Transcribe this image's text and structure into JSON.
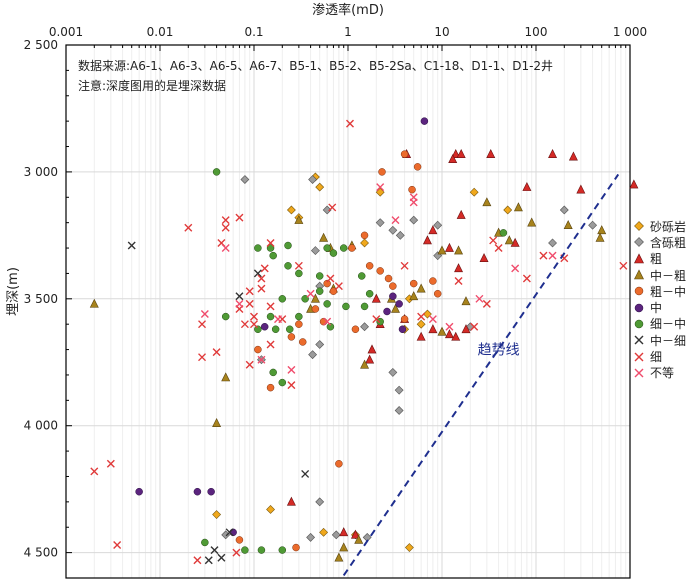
{
  "notes": {
    "line1": "数据来源:A6-1、A6-3、A6-5、A6-7、B5-1、B5-2、B5-2Sa、C1-18、D1-1、D1-2井",
    "line2": "注意:深度图用的是埋深数据"
  },
  "chart_data": {
    "type": "scatter",
    "xlabel": "渗透率(mD)",
    "ylabel": "埋深(m)",
    "xscale": "log",
    "xlim": [
      0.001,
      1000
    ],
    "ylim": [
      4600,
      2500
    ],
    "x_ticks": [
      0.001,
      0.01,
      0.1,
      1,
      10,
      100,
      1000
    ],
    "x_tick_labels": [
      "0.001",
      "0.01",
      "0.1",
      "1",
      "10",
      "100",
      "1 000"
    ],
    "y_ticks": [
      2500,
      3000,
      3500,
      4000,
      4500
    ],
    "y_tick_labels": [
      "2 500",
      "3 000",
      "3 500",
      "4 000",
      "4 500"
    ],
    "grid": true,
    "legend_position": "right",
    "series": [
      {
        "name": "砂砾岩",
        "marker": "diamond",
        "color": "#f0a81c",
        "stroke": "#7a5a10",
        "points": [
          [
            0.25,
            3150
          ],
          [
            0.45,
            3020
          ],
          [
            0.5,
            3060
          ],
          [
            0.3,
            3180
          ],
          [
            1.5,
            3280
          ],
          [
            2.2,
            3080
          ],
          [
            4.5,
            3500
          ],
          [
            6,
            3600
          ],
          [
            7,
            3560
          ],
          [
            22,
            3080
          ],
          [
            50,
            3150
          ],
          [
            4,
            3620
          ],
          [
            0.15,
            4330
          ],
          [
            0.55,
            4420
          ],
          [
            1.2,
            4430
          ],
          [
            4.5,
            4480
          ],
          [
            0.04,
            4350
          ]
        ]
      },
      {
        "name": "含砾粗",
        "marker": "diamond",
        "color": "#9b9b9b",
        "stroke": "#555555",
        "points": [
          [
            0.08,
            3030
          ],
          [
            0.42,
            3030
          ],
          [
            0.6,
            3150
          ],
          [
            0.45,
            3310
          ],
          [
            0.5,
            3450
          ],
          [
            2.2,
            3200
          ],
          [
            3,
            3230
          ],
          [
            3.6,
            3250
          ],
          [
            5,
            3190
          ],
          [
            9,
            3210
          ],
          [
            9,
            3330
          ],
          [
            20,
            3610
          ],
          [
            200,
            3150
          ],
          [
            150,
            3280
          ],
          [
            400,
            3210
          ],
          [
            0.12,
            3740
          ],
          [
            0.42,
            3720
          ],
          [
            0.5,
            3680
          ],
          [
            3,
            3790
          ],
          [
            3.5,
            3860
          ],
          [
            3.5,
            3940
          ],
          [
            1.5,
            3610
          ],
          [
            0.5,
            4300
          ],
          [
            0.4,
            4440
          ],
          [
            0.75,
            4430
          ],
          [
            1.6,
            4440
          ],
          [
            0.05,
            4430
          ]
        ]
      },
      {
        "name": "粗",
        "marker": "triangle",
        "color": "#d42a26",
        "stroke": "#6a1212",
        "points": [
          [
            4.2,
            2930
          ],
          [
            14,
            2930
          ],
          [
            16,
            2930
          ],
          [
            33,
            2930
          ],
          [
            13,
            2950
          ],
          [
            150,
            2930
          ],
          [
            250,
            2940
          ],
          [
            80,
            3060
          ],
          [
            300,
            3070
          ],
          [
            1100,
            3050
          ],
          [
            12,
            3300
          ],
          [
            15,
            3380
          ],
          [
            28,
            3340
          ],
          [
            16,
            3170
          ],
          [
            8,
            3230
          ],
          [
            7,
            3270
          ],
          [
            60,
            3280
          ],
          [
            2,
            3500
          ],
          [
            2.2,
            3600
          ],
          [
            4,
            3580
          ],
          [
            8,
            3620
          ],
          [
            12,
            3640
          ],
          [
            18,
            3620
          ],
          [
            6,
            3650
          ],
          [
            1.7,
            3740
          ],
          [
            1.8,
            3700
          ],
          [
            14,
            3650
          ],
          [
            0.25,
            4300
          ],
          [
            0.9,
            4420
          ],
          [
            1.2,
            4430
          ]
        ]
      },
      {
        "name": "中－粗",
        "marker": "triangle",
        "color": "#a7831d",
        "stroke": "#5a4510",
        "points": [
          [
            0.002,
            3520
          ],
          [
            0.3,
            3190
          ],
          [
            0.55,
            3260
          ],
          [
            0.65,
            3300
          ],
          [
            1.1,
            3290
          ],
          [
            0.7,
            3460
          ],
          [
            0.45,
            3500
          ],
          [
            0.4,
            3540
          ],
          [
            2.9,
            3500
          ],
          [
            3.2,
            3540
          ],
          [
            5,
            3490
          ],
          [
            10,
            3310
          ],
          [
            15,
            3310
          ],
          [
            30,
            3120
          ],
          [
            40,
            3240
          ],
          [
            52,
            3270
          ],
          [
            65,
            3140
          ],
          [
            90,
            3200
          ],
          [
            220,
            3210
          ],
          [
            500,
            3230
          ],
          [
            480,
            3260
          ],
          [
            18,
            3510
          ],
          [
            6,
            3460
          ],
          [
            10,
            3630
          ],
          [
            1.5,
            3760
          ],
          [
            0.05,
            3810
          ],
          [
            0.04,
            3990
          ],
          [
            0.9,
            4480
          ],
          [
            0.8,
            4520
          ],
          [
            1.3,
            4450
          ]
        ]
      },
      {
        "name": "粗－中",
        "marker": "circle",
        "color": "#eb6b2c",
        "stroke": "#7a3010",
        "points": [
          [
            2.3,
            3000
          ],
          [
            4,
            2930
          ],
          [
            5.5,
            2980
          ],
          [
            4.8,
            3070
          ],
          [
            1.5,
            3250
          ],
          [
            1.1,
            3300
          ],
          [
            1.7,
            3370
          ],
          [
            2.2,
            3390
          ],
          [
            2.7,
            3420
          ],
          [
            3,
            3450
          ],
          [
            0.6,
            3440
          ],
          [
            0.7,
            3470
          ],
          [
            0.45,
            3540
          ],
          [
            0.55,
            3590
          ],
          [
            0.3,
            3600
          ],
          [
            0.25,
            3650
          ],
          [
            0.33,
            3670
          ],
          [
            8,
            3430
          ],
          [
            9,
            3480
          ],
          [
            4,
            3580
          ],
          [
            1.2,
            3620
          ],
          [
            5,
            3440
          ],
          [
            0.15,
            3850
          ],
          [
            0.8,
            4150
          ],
          [
            0.28,
            4480
          ],
          [
            0.07,
            4450
          ],
          [
            0.11,
            3700
          ]
        ]
      },
      {
        "name": "中",
        "marker": "circle",
        "color": "#5b247e",
        "stroke": "#2a0f40",
        "points": [
          [
            6.5,
            2800
          ],
          [
            3,
            3490
          ],
          [
            3.5,
            3520
          ],
          [
            2.6,
            3550
          ],
          [
            3.8,
            3620
          ],
          [
            0.13,
            3610
          ],
          [
            0.006,
            4260
          ],
          [
            0.025,
            4260
          ],
          [
            0.035,
            4260
          ],
          [
            0.06,
            4420
          ]
        ]
      },
      {
        "name": "细－中",
        "marker": "circle",
        "color": "#4f9a35",
        "stroke": "#234a15",
        "points": [
          [
            0.04,
            3000
          ],
          [
            0.11,
            3300
          ],
          [
            0.15,
            3300
          ],
          [
            0.16,
            3330
          ],
          [
            0.23,
            3290
          ],
          [
            0.23,
            3370
          ],
          [
            0.3,
            3400
          ],
          [
            0.6,
            3300
          ],
          [
            0.7,
            3320
          ],
          [
            0.9,
            3300
          ],
          [
            0.5,
            3410
          ],
          [
            0.5,
            3470
          ],
          [
            0.6,
            3520
          ],
          [
            0.35,
            3500
          ],
          [
            0.3,
            3570
          ],
          [
            0.2,
            3500
          ],
          [
            0.15,
            3570
          ],
          [
            0.17,
            3620
          ],
          [
            0.24,
            3620
          ],
          [
            0.16,
            3790
          ],
          [
            0.2,
            3830
          ],
          [
            0.11,
            3620
          ],
          [
            1.4,
            3410
          ],
          [
            1.7,
            3480
          ],
          [
            2.2,
            3590
          ],
          [
            1.5,
            3530
          ],
          [
            0.95,
            3530
          ],
          [
            0.65,
            3610
          ],
          [
            45,
            3240
          ],
          [
            0.05,
            3570
          ],
          [
            0.03,
            4460
          ],
          [
            0.08,
            4490
          ],
          [
            0.12,
            4490
          ],
          [
            0.2,
            4490
          ]
        ]
      },
      {
        "name": "中－细",
        "marker": "x",
        "color": "#333333",
        "stroke": "#333333",
        "points": [
          [
            0.005,
            3290
          ],
          [
            0.11,
            3400
          ],
          [
            0.07,
            3490
          ],
          [
            0.038,
            4490
          ],
          [
            0.045,
            4520
          ],
          [
            0.033,
            4530
          ],
          [
            0.055,
            4420
          ],
          [
            0.35,
            4190
          ]
        ]
      },
      {
        "name": "细",
        "marker": "x",
        "color": "#e03a3a",
        "stroke": "#e03a3a",
        "points": [
          [
            1.05,
            2810
          ],
          [
            0.68,
            3140
          ],
          [
            0.05,
            3190
          ],
          [
            0.05,
            3220
          ],
          [
            0.07,
            3180
          ],
          [
            0.045,
            3280
          ],
          [
            0.02,
            3220
          ],
          [
            0.15,
            3280
          ],
          [
            0.13,
            3380
          ],
          [
            0.12,
            3420
          ],
          [
            0.12,
            3460
          ],
          [
            0.09,
            3470
          ],
          [
            0.09,
            3520
          ],
          [
            0.07,
            3540
          ],
          [
            0.08,
            3600
          ],
          [
            0.1,
            3570
          ],
          [
            0.15,
            3530
          ],
          [
            0.2,
            3580
          ],
          [
            0.3,
            3370
          ],
          [
            0.65,
            3420
          ],
          [
            0.8,
            3450
          ],
          [
            0.1,
            3600
          ],
          [
            0.15,
            3680
          ],
          [
            0.25,
            3840
          ],
          [
            0.09,
            3760
          ],
          [
            0.028,
            3600
          ],
          [
            0.028,
            3730
          ],
          [
            0.04,
            3710
          ],
          [
            4,
            3370
          ],
          [
            6,
            3570
          ],
          [
            2,
            3580
          ],
          [
            15,
            3430
          ],
          [
            40,
            3300
          ],
          [
            35,
            3270
          ],
          [
            80,
            3420
          ],
          [
            120,
            3330
          ],
          [
            200,
            3340
          ],
          [
            850,
            3370
          ],
          [
            22,
            3610
          ],
          [
            30,
            3520
          ],
          [
            0.002,
            4180
          ],
          [
            0.003,
            4150
          ],
          [
            0.025,
            4530
          ],
          [
            0.0035,
            4470
          ],
          [
            0.065,
            4500
          ]
        ]
      },
      {
        "name": "不等",
        "marker": "x",
        "color": "#f04c6c",
        "stroke": "#f04c6c",
        "points": [
          [
            2.2,
            3060
          ],
          [
            5,
            3100
          ],
          [
            5,
            3120
          ],
          [
            3.2,
            3190
          ],
          [
            0.05,
            3300
          ],
          [
            0.07,
            3520
          ],
          [
            0.03,
            3560
          ],
          [
            0.12,
            3740
          ],
          [
            0.25,
            3780
          ],
          [
            0.18,
            3580
          ],
          [
            60,
            3380
          ],
          [
            12,
            3610
          ],
          [
            8,
            3580
          ],
          [
            25,
            3500
          ],
          [
            150,
            3330
          ],
          [
            0.4,
            3480
          ],
          [
            0.6,
            3590
          ]
        ]
      }
    ],
    "annotations": [
      {
        "text": "趋势线",
        "type": "dashed-line",
        "from": [
          0.9,
          4590
        ],
        "to": [
          750,
          3010
        ]
      }
    ]
  }
}
